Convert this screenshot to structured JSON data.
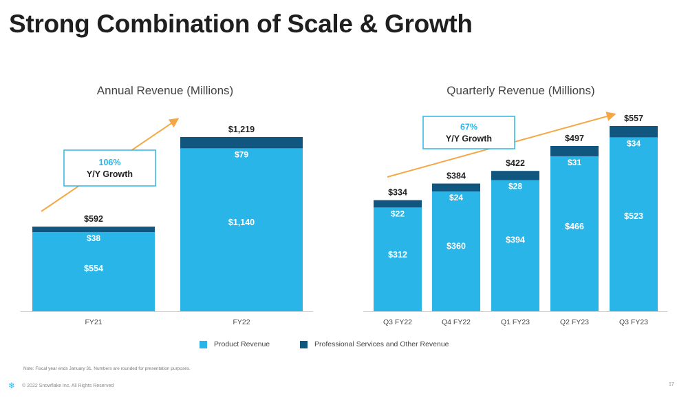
{
  "slide": {
    "title": "Strong Combination of Scale & Growth",
    "footnote": "Note: Fiscal year ends January 31. Numbers are rounded for presentation purposes.",
    "copyright": "© 2022 Snowflake Inc. All Rights Reserved",
    "page_number": "17",
    "logo_icon": "snowflake-icon"
  },
  "colors": {
    "product": "#29b5e8",
    "services": "#11567f",
    "arrow": "#f5a745",
    "growth_pct": "#29b5e8",
    "growth_border": "#29b5e8"
  },
  "legend": {
    "items": [
      {
        "label": "Product Revenue",
        "color": "#29b5e8"
      },
      {
        "label": "Professional Services and Other Revenue",
        "color": "#11567f"
      }
    ]
  },
  "chart_data": [
    {
      "type": "bar",
      "stacked": true,
      "title": "Annual Revenue (Millions)",
      "categories": [
        "FY21",
        "FY22"
      ],
      "series": [
        {
          "name": "Product Revenue",
          "values": [
            554,
            1140
          ],
          "labels": [
            "$554",
            "$1,140"
          ]
        },
        {
          "name": "Professional Services and Other Revenue",
          "values": [
            38,
            79
          ],
          "labels": [
            "$38",
            "$79"
          ]
        }
      ],
      "totals": [
        592,
        1219
      ],
      "total_labels": [
        "$592",
        "$1,219"
      ],
      "growth": {
        "pct": "106%",
        "label": "Y/Y Growth"
      },
      "ylim": [
        0,
        1219
      ],
      "legend": "bottom-center"
    },
    {
      "type": "bar",
      "stacked": true,
      "title": "Quarterly Revenue (Millions)",
      "categories": [
        "Q3 FY22",
        "Q4 FY22",
        "Q1 FY23",
        "Q2 FY23",
        "Q3 FY23"
      ],
      "series": [
        {
          "name": "Product Revenue",
          "values": [
            312,
            360,
            394,
            466,
            523
          ],
          "labels": [
            "$312",
            "$360",
            "$394",
            "$466",
            "$523"
          ]
        },
        {
          "name": "Professional Services and Other Revenue",
          "values": [
            22,
            24,
            28,
            31,
            34
          ],
          "labels": [
            "$22",
            "$24",
            "$28",
            "$31",
            "$34"
          ]
        }
      ],
      "totals": [
        334,
        384,
        422,
        497,
        557
      ],
      "total_labels": [
        "$334",
        "$384",
        "$422",
        "$497",
        "$557"
      ],
      "growth": {
        "pct": "67%",
        "label": "Y/Y Growth"
      },
      "ylim": [
        0,
        557
      ],
      "legend": "bottom-center"
    }
  ]
}
